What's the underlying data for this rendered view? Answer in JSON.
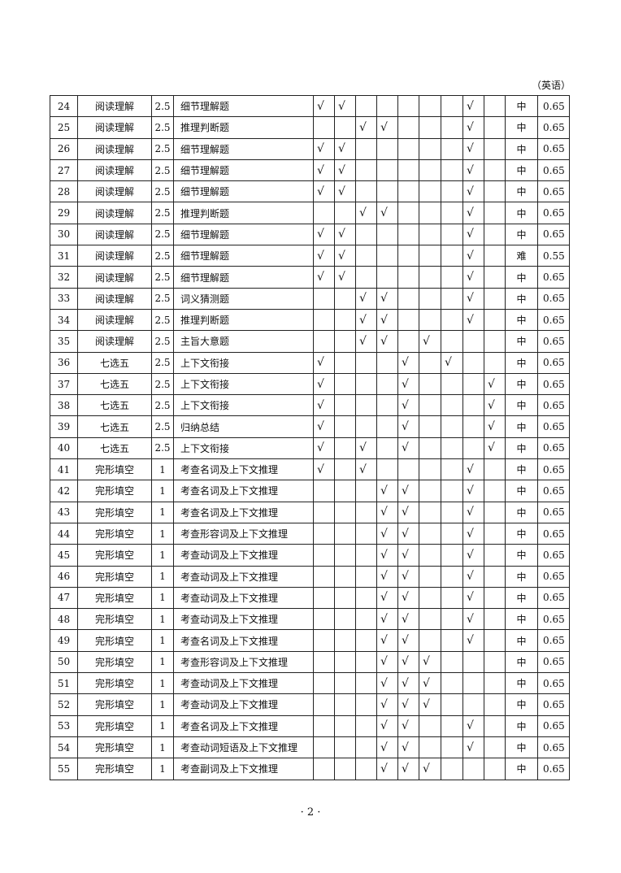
{
  "subject_label": "（英语）",
  "check_mark": "√",
  "page_number": "· 2 ·",
  "rows": [
    {
      "no": "24",
      "type": "阅读理解",
      "score": "2.5",
      "desc": "细节理解题",
      "checks": [
        1,
        2,
        8
      ],
      "level": "中",
      "coef": "0.65"
    },
    {
      "no": "25",
      "type": "阅读理解",
      "score": "2.5",
      "desc": "推理判断题",
      "checks": [
        3,
        4,
        8
      ],
      "level": "中",
      "coef": "0.65"
    },
    {
      "no": "26",
      "type": "阅读理解",
      "score": "2.5",
      "desc": "细节理解题",
      "checks": [
        1,
        2,
        8
      ],
      "level": "中",
      "coef": "0.65"
    },
    {
      "no": "27",
      "type": "阅读理解",
      "score": "2.5",
      "desc": "细节理解题",
      "checks": [
        1,
        2,
        8
      ],
      "level": "中",
      "coef": "0.65"
    },
    {
      "no": "28",
      "type": "阅读理解",
      "score": "2.5",
      "desc": "细节理解题",
      "checks": [
        1,
        2,
        8
      ],
      "level": "中",
      "coef": "0.65"
    },
    {
      "no": "29",
      "type": "阅读理解",
      "score": "2.5",
      "desc": "推理判断题",
      "checks": [
        3,
        4,
        8
      ],
      "level": "中",
      "coef": "0.65"
    },
    {
      "no": "30",
      "type": "阅读理解",
      "score": "2.5",
      "desc": "细节理解题",
      "checks": [
        1,
        2,
        8
      ],
      "level": "中",
      "coef": "0.65"
    },
    {
      "no": "31",
      "type": "阅读理解",
      "score": "2.5",
      "desc": "细节理解题",
      "checks": [
        1,
        2,
        8
      ],
      "level": "难",
      "coef": "0.55"
    },
    {
      "no": "32",
      "type": "阅读理解",
      "score": "2.5",
      "desc": "细节理解题",
      "checks": [
        1,
        2,
        8
      ],
      "level": "中",
      "coef": "0.65"
    },
    {
      "no": "33",
      "type": "阅读理解",
      "score": "2.5",
      "desc": "词义猜测题",
      "checks": [
        3,
        4,
        8
      ],
      "level": "中",
      "coef": "0.65"
    },
    {
      "no": "34",
      "type": "阅读理解",
      "score": "2.5",
      "desc": "推理判断题",
      "checks": [
        3,
        4,
        8
      ],
      "level": "中",
      "coef": "0.65"
    },
    {
      "no": "35",
      "type": "阅读理解",
      "score": "2.5",
      "desc": "主旨大意题",
      "checks": [
        3,
        4,
        6
      ],
      "level": "中",
      "coef": "0.65"
    },
    {
      "no": "36",
      "type": "七选五",
      "score": "2.5",
      "desc": "上下文衔接",
      "checks": [
        1,
        5,
        7
      ],
      "level": "中",
      "coef": "0.65"
    },
    {
      "no": "37",
      "type": "七选五",
      "score": "2.5",
      "desc": "上下文衔接",
      "checks": [
        1,
        5,
        9
      ],
      "level": "中",
      "coef": "0.65"
    },
    {
      "no": "38",
      "type": "七选五",
      "score": "2.5",
      "desc": "上下文衔接",
      "checks": [
        1,
        5,
        9
      ],
      "level": "中",
      "coef": "0.65"
    },
    {
      "no": "39",
      "type": "七选五",
      "score": "2.5",
      "desc": "归纳总结",
      "checks": [
        1,
        5,
        9
      ],
      "level": "中",
      "coef": "0.65"
    },
    {
      "no": "40",
      "type": "七选五",
      "score": "2.5",
      "desc": "上下文衔接",
      "checks": [
        1,
        3,
        5,
        9
      ],
      "level": "中",
      "coef": "0.65"
    },
    {
      "no": "41",
      "type": "完形填空",
      "score": "1",
      "desc": "考查名词及上下文推理",
      "checks": [
        1,
        3,
        8
      ],
      "level": "中",
      "coef": "0.65"
    },
    {
      "no": "42",
      "type": "完形填空",
      "score": "1",
      "desc": "考查名词及上下文推理",
      "checks": [
        4,
        5,
        8
      ],
      "level": "中",
      "coef": "0.65"
    },
    {
      "no": "43",
      "type": "完形填空",
      "score": "1",
      "desc": "考查名词及上下文推理",
      "checks": [
        4,
        5,
        8
      ],
      "level": "中",
      "coef": "0.65"
    },
    {
      "no": "44",
      "type": "完形填空",
      "score": "1",
      "desc": "考查形容词及上下文推理",
      "checks": [
        4,
        5,
        8
      ],
      "level": "中",
      "coef": "0.65"
    },
    {
      "no": "45",
      "type": "完形填空",
      "score": "1",
      "desc": "考查动词及上下文推理",
      "checks": [
        4,
        5,
        8
      ],
      "level": "中",
      "coef": "0.65"
    },
    {
      "no": "46",
      "type": "完形填空",
      "score": "1",
      "desc": "考查动词及上下文推理",
      "checks": [
        4,
        5,
        8
      ],
      "level": "中",
      "coef": "0.65"
    },
    {
      "no": "47",
      "type": "完形填空",
      "score": "1",
      "desc": "考查动词及上下文推理",
      "checks": [
        4,
        5,
        8
      ],
      "level": "中",
      "coef": "0.65"
    },
    {
      "no": "48",
      "type": "完形填空",
      "score": "1",
      "desc": "考查动词及上下文推理",
      "checks": [
        4,
        5,
        8
      ],
      "level": "中",
      "coef": "0.65"
    },
    {
      "no": "49",
      "type": "完形填空",
      "score": "1",
      "desc": "考查名词及上下文推理",
      "checks": [
        4,
        5,
        8
      ],
      "level": "中",
      "coef": "0.65"
    },
    {
      "no": "50",
      "type": "完形填空",
      "score": "1",
      "desc": "考查形容词及上下文推理",
      "checks": [
        4,
        5,
        6
      ],
      "level": "中",
      "coef": "0.65"
    },
    {
      "no": "51",
      "type": "完形填空",
      "score": "1",
      "desc": "考查动词及上下文推理",
      "checks": [
        4,
        5,
        6
      ],
      "level": "中",
      "coef": "0.65"
    },
    {
      "no": "52",
      "type": "完形填空",
      "score": "1",
      "desc": "考查动词及上下文推理",
      "checks": [
        4,
        5,
        6
      ],
      "level": "中",
      "coef": "0.65"
    },
    {
      "no": "53",
      "type": "完形填空",
      "score": "1",
      "desc": "考查名词及上下文推理",
      "checks": [
        4,
        5,
        8
      ],
      "level": "中",
      "coef": "0.65"
    },
    {
      "no": "54",
      "type": "完形填空",
      "score": "1",
      "desc": "考查动词短语及上下文推理",
      "checks": [
        4,
        5,
        8
      ],
      "level": "中",
      "coef": "0.65"
    },
    {
      "no": "55",
      "type": "完形填空",
      "score": "1",
      "desc": "考查副词及上下文推理",
      "checks": [
        4,
        5,
        6
      ],
      "level": "中",
      "coef": "0.65"
    }
  ]
}
